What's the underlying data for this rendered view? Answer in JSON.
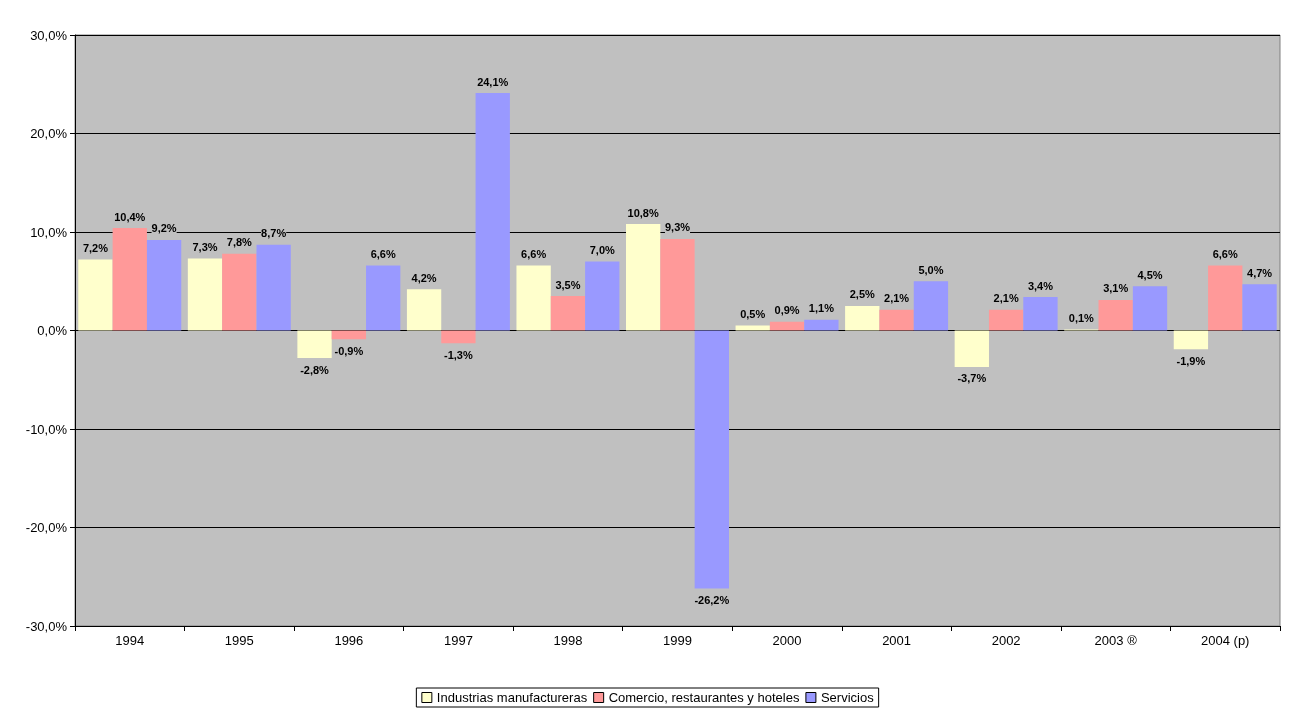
{
  "chart_data": {
    "type": "bar",
    "categories": [
      "1994",
      "1995",
      "1996",
      "1997",
      "1998",
      "1999",
      "2000",
      "2001",
      "2002",
      "2003 ®",
      "2004 (p)"
    ],
    "series": [
      {
        "name": "Industrias manufactureras",
        "color": "#ffffcc",
        "values": [
          7.2,
          7.3,
          -2.8,
          4.2,
          6.6,
          10.8,
          0.5,
          2.5,
          -3.7,
          0.1,
          -1.9
        ],
        "value_labels": [
          "7,2%",
          "7,3%",
          "-2,8%",
          "4,2%",
          "6,6%",
          "10,8%",
          "0,5%",
          "2,5%",
          "-3,7%",
          "0,1%",
          "-1,9%"
        ]
      },
      {
        "name": "Comercio, restaurantes y hoteles",
        "color": "#ff9999",
        "values": [
          10.4,
          7.8,
          -0.9,
          -1.3,
          3.5,
          9.3,
          0.9,
          2.1,
          2.1,
          3.1,
          6.6
        ],
        "value_labels": [
          "10,4%",
          "7,8%",
          "-0,9%",
          "-1,3%",
          "3,5%",
          "9,3%",
          "0,9%",
          "2,1%",
          "2,1%",
          "3,1%",
          "6,6%"
        ]
      },
      {
        "name": "Servicios",
        "color": "#9999ff",
        "values": [
          9.2,
          8.7,
          6.6,
          24.1,
          7.0,
          -26.2,
          1.1,
          5.0,
          3.4,
          4.5,
          4.7
        ],
        "value_labels": [
          "9,2%",
          "8,7%",
          "6,6%",
          "24,1%",
          "7,0%",
          "-26,2%",
          "1,1%",
          "5,0%",
          "3,4%",
          "4,5%",
          "4,7%"
        ]
      }
    ],
    "ylim": [
      -30,
      30
    ],
    "yticks": [
      {
        "value": -30,
        "label": "-30,0%"
      },
      {
        "value": -20,
        "label": "-20,0%"
      },
      {
        "value": -10,
        "label": "-10,0%"
      },
      {
        "value": 0,
        "label": "0,0%"
      },
      {
        "value": 10,
        "label": "10,0%"
      },
      {
        "value": 20,
        "label": "20,0%"
      },
      {
        "value": 30,
        "label": "30,0%"
      }
    ],
    "grid": "y",
    "legend": "bottom"
  }
}
